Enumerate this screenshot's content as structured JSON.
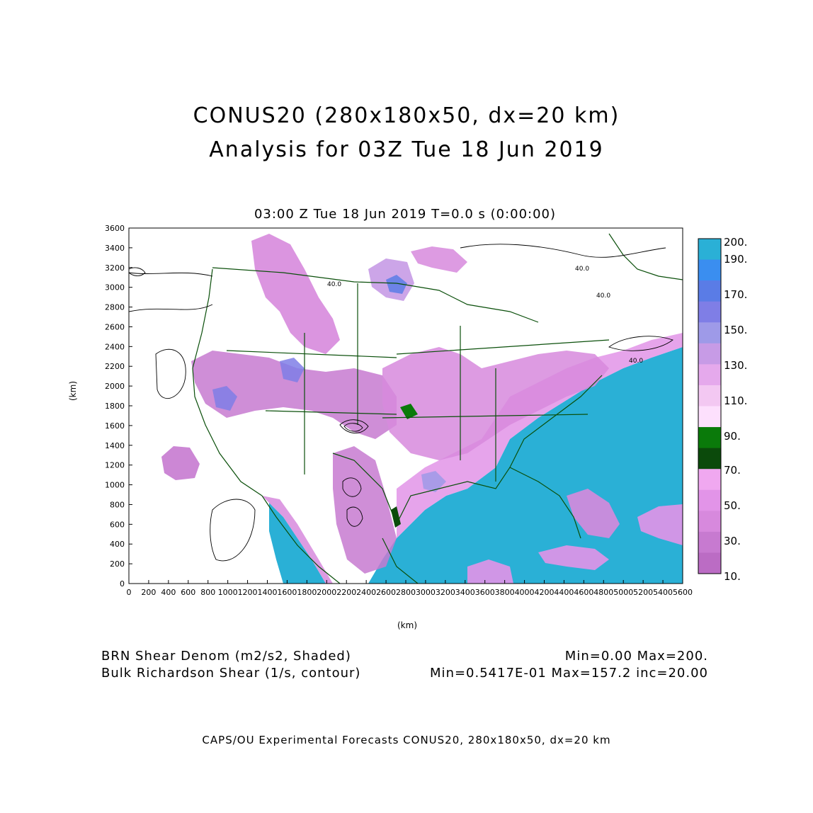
{
  "title": {
    "line1": "CONUS20 (280x180x50, dx=20 km)",
    "line2": "Analysis for 03Z Tue 18 Jun 2019"
  },
  "subtitle": "03:00 Z Tue 18 Jun 2019    T=0.0 s (0:00:00)",
  "axes": {
    "xlabel": "(km)",
    "ylabel": "(km)",
    "x_ticks": [
      "0",
      "200",
      "400",
      "600",
      "800",
      "1000",
      "1200",
      "1400",
      "1600",
      "1800",
      "2000",
      "2200",
      "2400",
      "2600",
      "2800",
      "3000",
      "3200",
      "3400",
      "3600",
      "3800",
      "4000",
      "4200",
      "4400",
      "4600",
      "4800",
      "5000",
      "5200",
      "5400",
      "5600"
    ],
    "y_ticks": [
      "0",
      "200",
      "400",
      "600",
      "800",
      "1000",
      "1200",
      "1400",
      "1600",
      "1800",
      "2000",
      "2200",
      "2400",
      "2600",
      "2800",
      "3000",
      "3200",
      "3400",
      "3600"
    ],
    "xlim": [
      0,
      5600
    ],
    "ylim": [
      0,
      3600
    ]
  },
  "colorbar": {
    "labels": [
      "200.",
      "190.",
      "170.",
      "150.",
      "130.",
      "110.",
      "90.",
      "70.",
      "50.",
      "30.",
      "10."
    ],
    "colors": [
      "#2ab0d6",
      "#3a8ef0",
      "#5a7ce6",
      "#7f7ee6",
      "#9e9ae8",
      "#c79be6",
      "#e5a9ec",
      "#f3c8f2",
      "#fde0fd",
      "#0a7a0a",
      "#0b4a0b",
      "#f0a8f0",
      "#e294e8",
      "#d789dd",
      "#c77ad0",
      "#bb6cc4"
    ]
  },
  "contour_labels": [
    "40.0",
    "40.0",
    "40.0",
    "40.0"
  ],
  "captions": {
    "left1": "BRN Shear Denom (m2/s2, Shaded)",
    "left2": "Bulk Richardson Shear (1/s, contour)",
    "right1": "Min=0.00 Max=200.",
    "right2": "Min=0.5417E-01 Max=157.2 inc=20.00"
  },
  "credit": "CAPS/OU Experimental Forecasts  CONUS20, 280x180x50, dx=20 km"
}
